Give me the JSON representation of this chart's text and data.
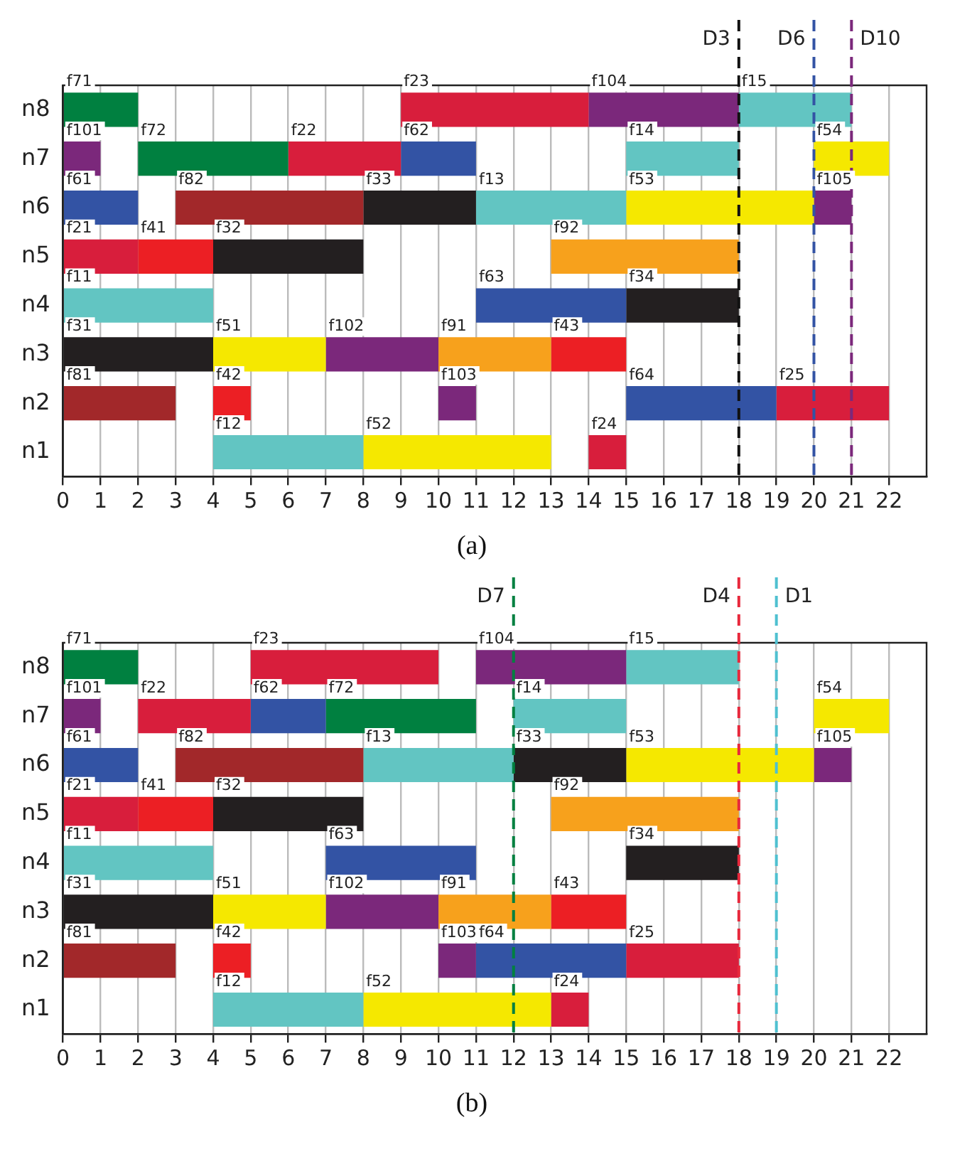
{
  "chart_data": [
    {
      "type": "bar",
      "title": "(a)",
      "orientation": "horizontal",
      "categories": [
        "n8",
        "n7",
        "n6",
        "n5",
        "n4",
        "n3",
        "n2",
        "n1"
      ],
      "xlim": [
        0,
        23
      ],
      "xticks": [
        0,
        1,
        2,
        3,
        4,
        5,
        6,
        7,
        8,
        9,
        10,
        11,
        12,
        13,
        14,
        15,
        16,
        17,
        18,
        19,
        20,
        21,
        22
      ],
      "grid": "x",
      "series": [
        {
          "base": [
            0,
            0,
            0,
            0,
            0,
            0,
            0,
            4
          ],
          "values": [
            2,
            1,
            2,
            2,
            4,
            4,
            3,
            4
          ],
          "colors": [
            "#008040",
            "#7b287b",
            "#3353a4",
            "#d81e3c",
            "#62c5c2",
            "#231f20",
            "#a2282a",
            "#62c5c2"
          ],
          "value_labels": [
            "f71",
            "f101",
            "f61",
            "f21",
            "f11",
            "f31",
            "f81",
            "f12"
          ]
        },
        {
          "base": [
            9,
            2,
            3,
            2,
            11,
            4,
            4,
            8
          ],
          "values": [
            5,
            4,
            5,
            2,
            4,
            3,
            1,
            5
          ],
          "colors": [
            "#d81e3c",
            "#008040",
            "#a2282a",
            "#ec1f24",
            "#3353a4",
            "#f5e800",
            "#ec1f24",
            "#f5e800"
          ],
          "value_labels": [
            "f23",
            "f72",
            "f82",
            "f41",
            "f63",
            "f51",
            "f42",
            "f52"
          ]
        },
        {
          "base": [
            14,
            6,
            8,
            4,
            15,
            7,
            10,
            14
          ],
          "values": [
            4,
            3,
            3,
            4,
            3,
            3,
            1,
            1
          ],
          "colors": [
            "#7b287b",
            "#d81e3c",
            "#231f20",
            "#231f20",
            "#231f20",
            "#7b287b",
            "#7b287b",
            "#d81e3c"
          ],
          "value_labels": [
            "f104",
            "f22",
            "f33",
            "f32",
            "f34",
            "f102",
            "f103",
            "f24"
          ]
        },
        {
          "base": [
            18,
            9,
            11,
            13,
            null,
            10,
            15,
            null
          ],
          "values": [
            3,
            2,
            4,
            5,
            null,
            3,
            4,
            null
          ],
          "colors": [
            "#62c5c2",
            "#3353a4",
            "#62c5c2",
            "#f7a11c",
            null,
            "#f7a11c",
            "#3353a4",
            null
          ],
          "value_labels": [
            "f15",
            "f62",
            "f13",
            "f92",
            null,
            "f91",
            "f64",
            null
          ]
        },
        {
          "base": [
            null,
            15,
            15,
            null,
            null,
            13,
            19,
            null
          ],
          "values": [
            null,
            3,
            5,
            null,
            null,
            2,
            3,
            null
          ],
          "colors": [
            null,
            "#62c5c2",
            "#f5e800",
            null,
            null,
            "#ec1f24",
            "#d81e3c",
            null
          ],
          "value_labels": [
            null,
            "f14",
            "f53",
            null,
            null,
            "f43",
            "f25",
            null
          ]
        },
        {
          "base": [
            null,
            20,
            20,
            null,
            null,
            null,
            null,
            null
          ],
          "values": [
            null,
            2,
            1,
            null,
            null,
            null,
            null,
            null
          ],
          "colors": [
            null,
            "#f5e800",
            "#7b287b",
            null,
            null,
            null,
            null,
            null
          ],
          "value_labels": [
            null,
            "f54",
            "f105",
            null,
            null,
            null,
            null,
            null
          ]
        }
      ],
      "ref_lines": [
        {
          "axis": "x",
          "value": 18,
          "label": "D3",
          "color": "#111111",
          "line_style": "dashed"
        },
        {
          "axis": "x",
          "value": 20,
          "label": "D6",
          "color": "#3353a4",
          "line_style": "dashed"
        },
        {
          "axis": "x",
          "value": 21,
          "label": "D10",
          "color": "#7b287b",
          "line_style": "dashed"
        }
      ]
    },
    {
      "type": "bar",
      "title": "(b)",
      "orientation": "horizontal",
      "categories": [
        "n8",
        "n7",
        "n6",
        "n5",
        "n4",
        "n3",
        "n2",
        "n1"
      ],
      "xlim": [
        0,
        23
      ],
      "xticks": [
        0,
        1,
        2,
        3,
        4,
        5,
        6,
        7,
        8,
        9,
        10,
        11,
        12,
        13,
        14,
        15,
        16,
        17,
        18,
        19,
        20,
        21,
        22
      ],
      "grid": "x",
      "series": [
        {
          "base": [
            0,
            0,
            0,
            0,
            0,
            0,
            0,
            4
          ],
          "values": [
            2,
            1,
            2,
            2,
            4,
            4,
            3,
            4
          ],
          "colors": [
            "#008040",
            "#7b287b",
            "#3353a4",
            "#d81e3c",
            "#62c5c2",
            "#231f20",
            "#a2282a",
            "#62c5c2"
          ],
          "value_labels": [
            "f71",
            "f101",
            "f61",
            "f21",
            "f11",
            "f31",
            "f81",
            "f12"
          ]
        },
        {
          "base": [
            5,
            2,
            3,
            2,
            7,
            4,
            4,
            8
          ],
          "values": [
            5,
            3,
            5,
            2,
            4,
            3,
            1,
            5
          ],
          "colors": [
            "#d81e3c",
            "#d81e3c",
            "#a2282a",
            "#ec1f24",
            "#3353a4",
            "#f5e800",
            "#ec1f24",
            "#f5e800"
          ],
          "value_labels": [
            "f23",
            "f22",
            "f82",
            "f41",
            "f63",
            "f51",
            "f42",
            "f52"
          ]
        },
        {
          "base": [
            11,
            5,
            8,
            4,
            15,
            7,
            10,
            13
          ],
          "values": [
            4,
            2,
            4,
            4,
            3,
            3,
            1,
            1
          ],
          "colors": [
            "#7b287b",
            "#3353a4",
            "#62c5c2",
            "#231f20",
            "#231f20",
            "#7b287b",
            "#7b287b",
            "#d81e3c"
          ],
          "value_labels": [
            "f104",
            "f62",
            "f13",
            "f32",
            "f34",
            "f102",
            "f103",
            "f24"
          ]
        },
        {
          "base": [
            15,
            7,
            12,
            13,
            null,
            10,
            11,
            null
          ],
          "values": [
            3,
            4,
            3,
            5,
            null,
            3,
            4,
            null
          ],
          "colors": [
            "#62c5c2",
            "#008040",
            "#231f20",
            "#f7a11c",
            null,
            "#f7a11c",
            "#3353a4",
            null
          ],
          "value_labels": [
            "f15",
            "f72",
            "f33",
            "f92",
            null,
            "f91",
            "f64",
            null
          ]
        },
        {
          "base": [
            null,
            12,
            15,
            null,
            null,
            13,
            15,
            null
          ],
          "values": [
            null,
            3,
            5,
            null,
            null,
            2,
            3,
            null
          ],
          "colors": [
            null,
            "#62c5c2",
            "#f5e800",
            null,
            null,
            "#ec1f24",
            "#d81e3c",
            null
          ],
          "value_labels": [
            null,
            "f14",
            "f53",
            null,
            null,
            "f43",
            "f25",
            null
          ]
        },
        {
          "base": [
            null,
            20,
            20,
            null,
            null,
            null,
            null,
            null
          ],
          "values": [
            null,
            2,
            1,
            null,
            null,
            null,
            null,
            null
          ],
          "colors": [
            null,
            "#f5e800",
            "#7b287b",
            null,
            null,
            null,
            null,
            null
          ],
          "value_labels": [
            null,
            "f54",
            "f105",
            null,
            null,
            null,
            null,
            null
          ]
        }
      ],
      "ref_lines": [
        {
          "axis": "x",
          "value": 12,
          "label": "D7",
          "color": "#008040",
          "line_style": "dashed"
        },
        {
          "axis": "x",
          "value": 18,
          "label": "D4",
          "color": "#e8283c",
          "line_style": "dashed"
        },
        {
          "axis": "x",
          "value": 19,
          "label": "D1",
          "color": "#4fc0d0",
          "line_style": "dashed"
        }
      ]
    }
  ]
}
